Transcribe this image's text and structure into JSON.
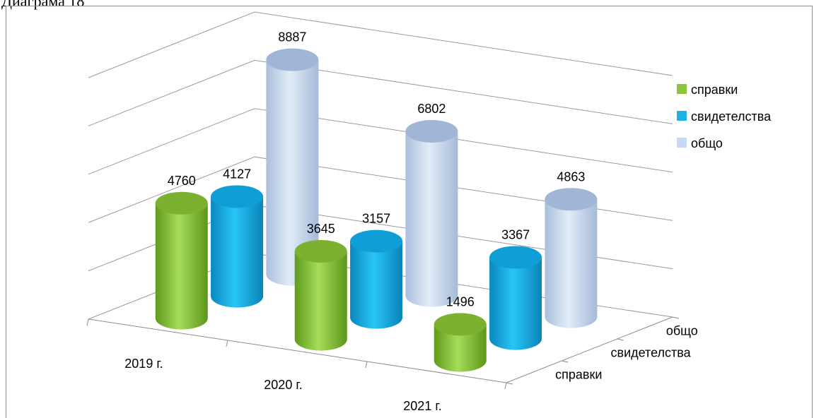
{
  "caption": "Диаграма 18",
  "chart_data": {
    "type": "bar",
    "subtype": "3d-cylinder",
    "categories": [
      "2019 г.",
      "2020 г.",
      "2021 г."
    ],
    "series": [
      {
        "name": "справки",
        "values": [
          4760,
          3645,
          1496
        ],
        "color": "#8cc63f"
      },
      {
        "name": "свидетелства",
        "values": [
          4127,
          3157,
          3367
        ],
        "color": "#1ab2e8"
      },
      {
        "name": "общо",
        "values": [
          8887,
          6802,
          4863
        ],
        "color": "#c6d9f1"
      }
    ],
    "depth_axis_labels": [
      "справки",
      "свидетелства",
      "общо"
    ],
    "ylim": [
      0,
      10000
    ],
    "grid": true,
    "legend": "right"
  }
}
